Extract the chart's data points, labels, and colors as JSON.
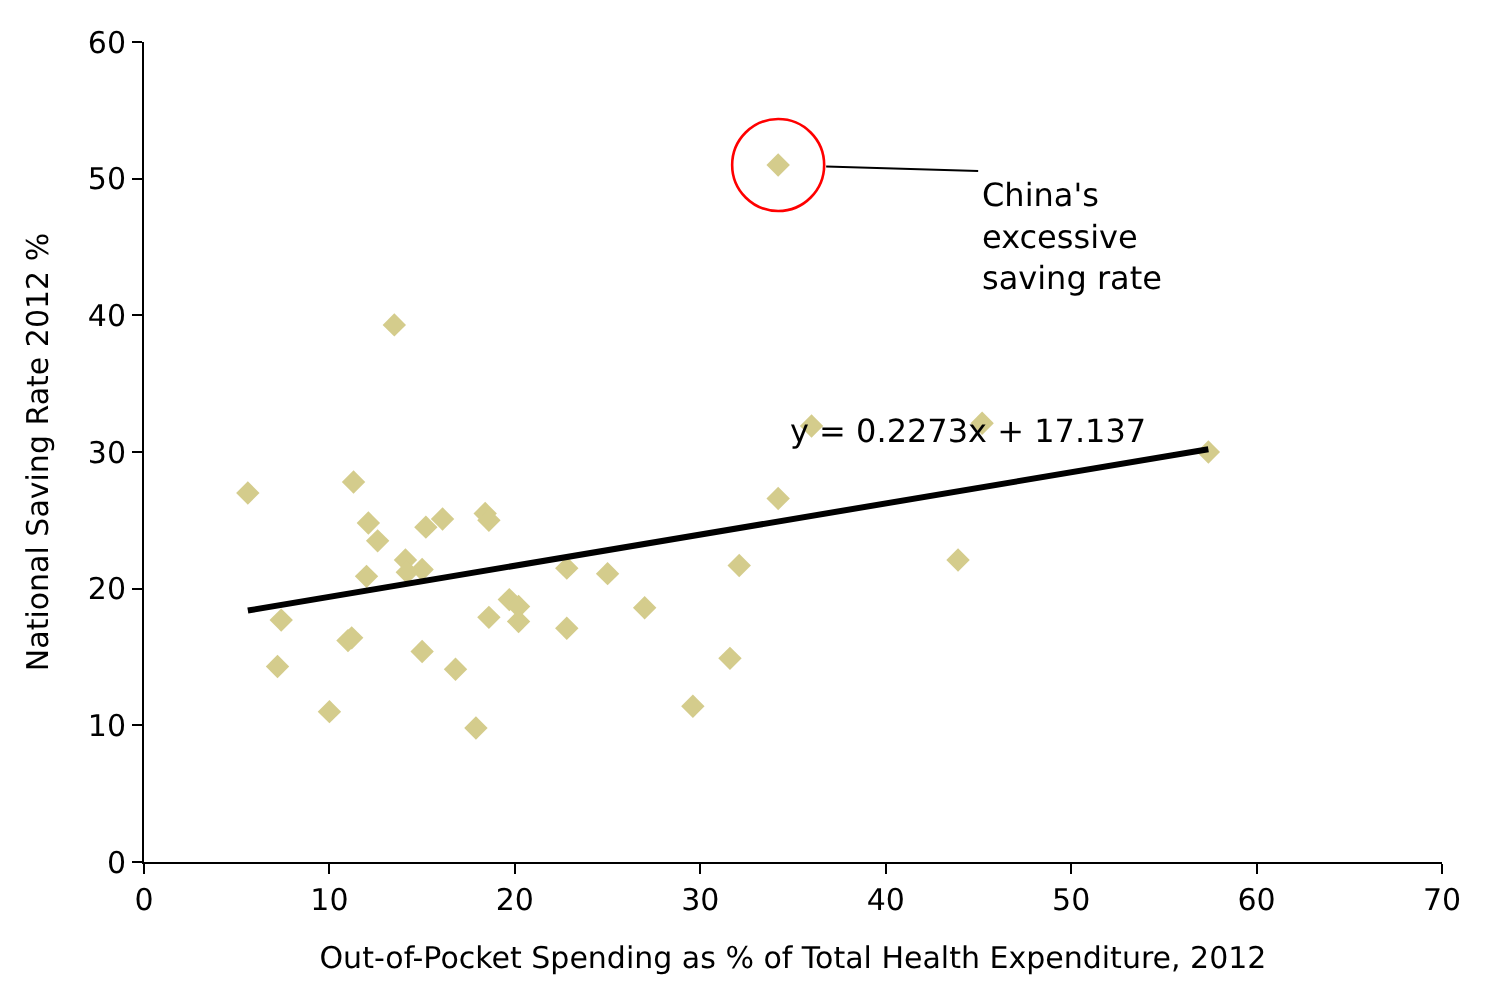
{
  "chart_data": {
    "type": "scatter",
    "xlabel": "Out-of-Pocket Spending as % of Total Health Expenditure, 2012",
    "ylabel": "National Saving Rate 2012 %",
    "xlim": [
      0,
      70
    ],
    "xticks": [
      0,
      10,
      20,
      30,
      40,
      50,
      60,
      70
    ],
    "ylim": [
      0,
      60
    ],
    "yticks": [
      0,
      10,
      20,
      30,
      40,
      50,
      60
    ],
    "series": [
      {
        "color": "#d4cc8c",
        "marker": "diamond",
        "x": [
          13.5,
          5.6,
          11.3,
          12.1,
          12.6,
          15.2,
          16.1,
          18.4,
          18.6,
          14.1,
          15.0,
          14.2,
          12.0,
          22.8,
          25.0,
          27.0,
          7.4,
          7.2,
          11.0,
          11.2,
          10.0,
          15.0,
          16.8,
          17.9,
          18.6,
          19.7,
          20.2,
          20.2,
          22.8,
          36.0,
          45.2,
          57.4,
          34.2,
          43.9,
          32.1,
          31.6,
          29.6,
          34.2
        ],
        "values": [
          39.3,
          27.0,
          27.8,
          24.8,
          23.5,
          24.5,
          25.1,
          25.5,
          25.0,
          22.1,
          21.4,
          21.2,
          20.9,
          21.5,
          21.1,
          18.6,
          17.7,
          14.3,
          16.2,
          16.4,
          11.0,
          15.4,
          14.1,
          9.8,
          17.9,
          19.2,
          18.7,
          17.6,
          17.1,
          31.9,
          32.1,
          30.0,
          26.6,
          22.1,
          21.7,
          14.9,
          11.4,
          51.0
        ]
      },
      {
        "type": "line",
        "color": "#000000",
        "x": [
          5.6,
          57.4
        ],
        "values": [
          18.4,
          30.2
        ],
        "line_style": "solid"
      }
    ],
    "annotations": [
      {
        "text": "China's\nexcessive\nsaving rate",
        "x": 34.2,
        "y": 51.0
      },
      "y = 0.2273x + 17.137"
    ]
  }
}
